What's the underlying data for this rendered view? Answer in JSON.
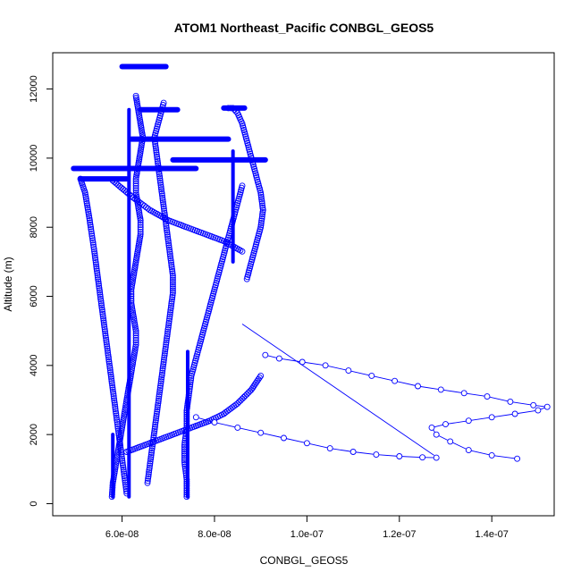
{
  "chart_data": {
    "type": "scatter",
    "title": "ATOM1 Northeast_Pacific CONBGL_GEOS5",
    "xlabel": "CONBGL_GEOS5",
    "ylabel": "Altitude (m)",
    "xlim": [
      4.5e-08,
      1.535e-07
    ],
    "ylim": [
      -350,
      13050
    ],
    "x_ticks": [
      6e-08,
      8e-08,
      1e-07,
      1.2e-07,
      1.4e-07
    ],
    "x_tick_labels": [
      "6.0e-08",
      "8.0e-08",
      "1.0e-07",
      "1.2e-07",
      "1.4e-07"
    ],
    "y_ticks": [
      0,
      2000,
      4000,
      6000,
      8000,
      10000,
      12000
    ],
    "y_tick_labels": [
      "0",
      "2000",
      "4000",
      "6000",
      "8000",
      "10000",
      "12000"
    ],
    "grid": false,
    "legend": "none",
    "marker": "open-circle",
    "colors": {
      "series": "#0000ff",
      "axis": "#000000",
      "background": "#ffffff"
    },
    "series": [
      {
        "style": "points",
        "x": [
          5.78e-08,
          5.8e-08,
          5.85e-08,
          5.9e-08,
          5.95e-08,
          6e-08,
          6.05e-08,
          6.1e-08,
          6.15e-08,
          6.2e-08,
          6.25e-08,
          6.3e-08,
          6.3e-08,
          6.25e-08,
          6.2e-08,
          6.2e-08,
          6.25e-08,
          6.3e-08,
          6.35e-08,
          6.4e-08,
          6.4e-08,
          6.35e-08,
          6.3e-08,
          6.3e-08,
          6.35e-08,
          6.4e-08,
          6.45e-08,
          6.4e-08,
          6.35e-08,
          6.3e-08
        ],
        "y": [
          200,
          600,
          1000,
          1400,
          1800,
          2200,
          2600,
          3000,
          3400,
          3800,
          4200,
          4600,
          5000,
          5400,
          5800,
          6200,
          6600,
          7000,
          7400,
          7800,
          8200,
          8600,
          9000,
          9400,
          9800,
          10200,
          10600,
          11000,
          11400,
          11800
        ]
      },
      {
        "style": "points",
        "x": [
          6.1e-08,
          6.05e-08,
          6e-08,
          5.95e-08,
          5.9e-08,
          5.85e-08,
          5.8e-08,
          5.75e-08,
          5.7e-08,
          5.65e-08,
          5.6e-08,
          5.55e-08,
          5.5e-08,
          5.45e-08,
          5.4e-08,
          5.3e-08,
          5.2e-08,
          5.1e-08
        ],
        "y": [
          300,
          800,
          1300,
          1800,
          2300,
          2800,
          3300,
          3800,
          4300,
          4800,
          5300,
          5800,
          6300,
          6800,
          7300,
          8200,
          9000,
          9400
        ]
      },
      {
        "style": "points",
        "x": [
          6.55e-08,
          6.6e-08,
          6.65e-08,
          6.7e-08,
          6.75e-08,
          6.8e-08,
          6.85e-08,
          6.9e-08,
          6.95e-08,
          7e-08,
          7.05e-08,
          7.1e-08,
          7.1e-08,
          7.05e-08,
          7e-08,
          6.95e-08,
          6.9e-08,
          6.85e-08,
          6.8e-08,
          6.75e-08,
          6.7e-08,
          6.8e-08,
          6.9e-08
        ],
        "y": [
          600,
          1100,
          1600,
          2100,
          2600,
          3100,
          3600,
          4100,
          4600,
          5100,
          5600,
          6100,
          6600,
          7100,
          7600,
          8100,
          8600,
          9100,
          9600,
          10100,
          10600,
          11100,
          11600
        ]
      },
      {
        "style": "points",
        "x": [
          7.4e-08,
          7.4e-08,
          7.35e-08,
          7.35e-08,
          7.4e-08,
          7.4e-08,
          7.45e-08,
          7.5e-08,
          7.6e-08,
          7.7e-08,
          7.8e-08,
          7.9e-08,
          8e-08,
          8.1e-08,
          8.2e-08,
          8.3e-08,
          8.4e-08,
          8.5e-08,
          8.6e-08
        ],
        "y": [
          200,
          700,
          1200,
          1700,
          2200,
          2700,
          3200,
          3700,
          4200,
          4700,
          5200,
          5700,
          6200,
          6700,
          7200,
          7700,
          8200,
          8700,
          9200
        ]
      },
      {
        "style": "points",
        "x": [
          8.7e-08,
          8.8e-08,
          8.9e-08,
          9e-08,
          9.05e-08,
          9e-08,
          8.9e-08,
          8.8e-08,
          8.7e-08,
          8.6e-08,
          8.5e-08,
          8.4e-08,
          8.3e-08
        ],
        "y": [
          6500,
          7000,
          7500,
          8000,
          8500,
          9000,
          9500,
          10000,
          10500,
          11000,
          11300,
          11450,
          11450
        ]
      },
      {
        "style": "points",
        "x": [
          6.1e-08,
          6.4e-08,
          6.7e-08,
          7e-08,
          7.3e-08,
          7.6e-08,
          7.9e-08,
          8.2e-08,
          8.5e-08,
          8.8e-08,
          9e-08
        ],
        "y": [
          1500,
          1650,
          1800,
          1950,
          2100,
          2250,
          2400,
          2600,
          2900,
          3300,
          3700
        ]
      },
      {
        "style": "lines+points",
        "x": [
          9.1e-08,
          9.4e-08,
          9.9e-08,
          1.04e-07,
          1.09e-07,
          1.14e-07,
          1.19e-07,
          1.24e-07,
          1.29e-07,
          1.34e-07,
          1.39e-07,
          1.44e-07,
          1.49e-07,
          1.52e-07,
          1.5e-07,
          1.45e-07,
          1.4e-07,
          1.35e-07,
          1.3e-07,
          1.27e-07,
          1.28e-07,
          1.31e-07,
          1.35e-07,
          1.4e-07,
          1.455e-07
        ],
        "y": [
          4300,
          4200,
          4100,
          4000,
          3850,
          3700,
          3550,
          3400,
          3300,
          3200,
          3100,
          2950,
          2850,
          2800,
          2700,
          2600,
          2500,
          2400,
          2300,
          2200,
          2000,
          1800,
          1550,
          1400,
          1300
        ]
      },
      {
        "style": "lines+points",
        "x": [
          7.6e-08,
          8e-08,
          8.5e-08,
          9e-08,
          9.5e-08,
          1e-07,
          1.05e-07,
          1.1e-07,
          1.15e-07,
          1.2e-07,
          1.25e-07,
          1.28e-07
        ],
        "y": [
          2500,
          2350,
          2200,
          2050,
          1900,
          1750,
          1600,
          1500,
          1420,
          1370,
          1340,
          1330
        ]
      },
      {
        "style": "lines",
        "x": [
          8.6e-08,
          1.275e-07
        ],
        "y": [
          5200,
          1400
        ]
      },
      {
        "style": "points",
        "x": [
          5.8e-08,
          6.2e-08,
          6.6e-08,
          7e-08,
          7.4e-08,
          7.8e-08,
          8.2e-08,
          8.6e-08
        ],
        "y": [
          9350,
          8900,
          8500,
          8200,
          8000,
          7800,
          7600,
          7300
        ]
      },
      {
        "style": "dense-level",
        "x_start": 6e-08,
        "x_end": 6.95e-08,
        "y": 12650
      },
      {
        "style": "dense-level",
        "x_start": 6.4e-08,
        "x_end": 7.2e-08,
        "y": 11400
      },
      {
        "style": "dense-level",
        "x_start": 8.2e-08,
        "x_end": 8.65e-08,
        "y": 11450
      },
      {
        "style": "dense-level",
        "x_start": 6.2e-08,
        "x_end": 8.3e-08,
        "y": 10550
      },
      {
        "style": "dense-level",
        "x_start": 7.1e-08,
        "x_end": 9.1e-08,
        "y": 9950
      },
      {
        "style": "dense-level",
        "x_start": 4.95e-08,
        "x_end": 7.6e-08,
        "y": 9700
      },
      {
        "style": "dense-level",
        "x_start": 5.1e-08,
        "x_end": 6.1e-08,
        "y": 9400
      },
      {
        "style": "dense-vertical",
        "x": 5.8e-08,
        "y_start": 200,
        "y_end": 2000
      },
      {
        "style": "dense-vertical",
        "x": 6.15e-08,
        "y_start": 200,
        "y_end": 11400
      },
      {
        "style": "dense-vertical",
        "x": 7.42e-08,
        "y_start": 200,
        "y_end": 4400
      },
      {
        "style": "dense-vertical",
        "x": 8.4e-08,
        "y_start": 7000,
        "y_end": 10200
      }
    ]
  }
}
